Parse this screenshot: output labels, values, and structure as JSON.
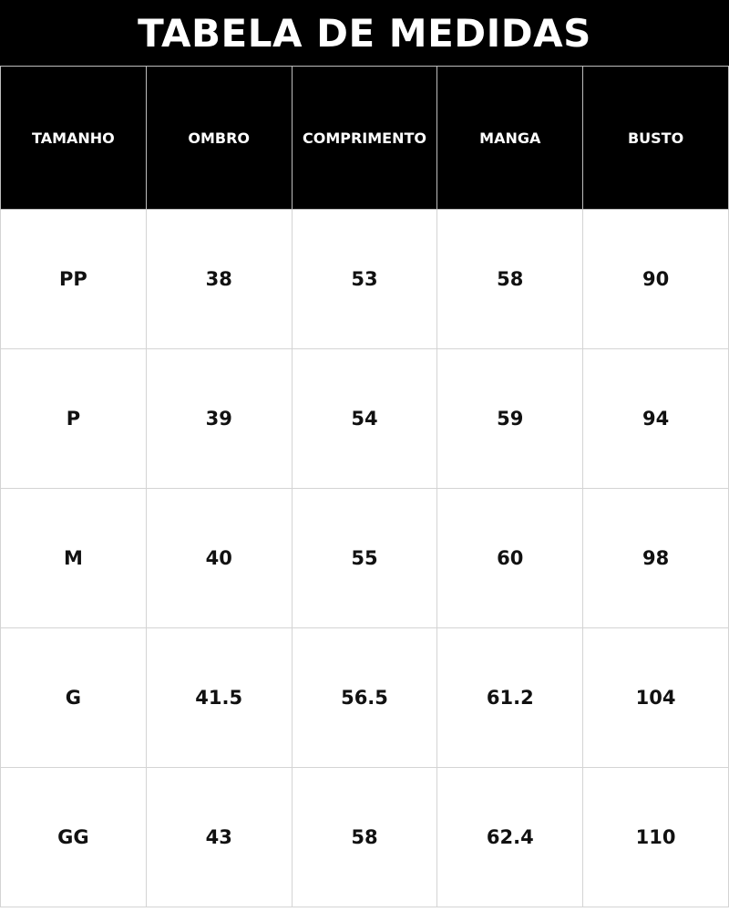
{
  "title": "TABELA DE MEDIDAS",
  "headers": [
    "TAMANHO",
    "OMBRO",
    "COMPRIMENTO",
    "MANGA",
    "BUSTO"
  ],
  "rows": [
    [
      "PP",
      "38",
      "53",
      "58",
      "90"
    ],
    [
      "P",
      "39",
      "54",
      "59",
      "94"
    ],
    [
      "M",
      "40",
      "55",
      "60",
      "98"
    ],
    [
      "G",
      "41.5",
      "56.5",
      "61.2",
      "104"
    ],
    [
      "GG",
      "43",
      "58",
      "62.4",
      "110"
    ]
  ]
}
